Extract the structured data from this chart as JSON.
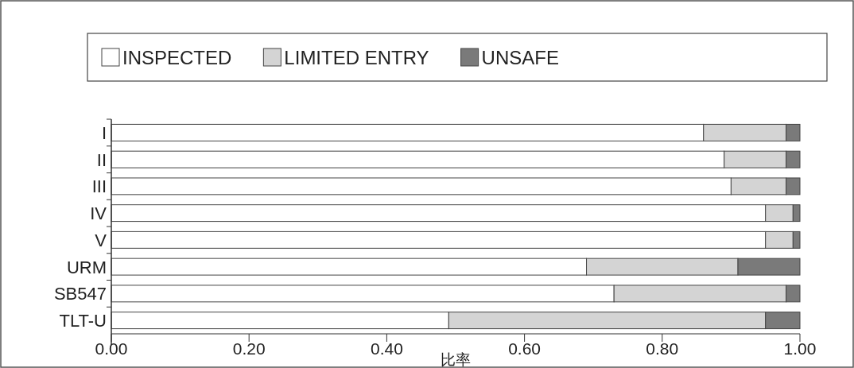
{
  "chart_data": {
    "type": "bar",
    "orientation": "horizontal",
    "stacked": true,
    "xlabel": "比率",
    "categories": [
      "I",
      "II",
      "III",
      "IV",
      "V",
      "URM",
      "SB547",
      "TLT-U"
    ],
    "series": [
      {
        "name": "INSPECTED",
        "color": "#ffffff",
        "values": [
          0.86,
          0.89,
          0.9,
          0.95,
          0.95,
          0.69,
          0.73,
          0.49
        ]
      },
      {
        "name": "LIMITED ENTRY",
        "color": "#d4d4d4",
        "values": [
          0.12,
          0.09,
          0.08,
          0.04,
          0.04,
          0.22,
          0.25,
          0.46
        ]
      },
      {
        "name": "UNSAFE",
        "color": "#7a7a7a",
        "values": [
          0.02,
          0.02,
          0.02,
          0.01,
          0.01,
          0.09,
          0.02,
          0.05
        ]
      }
    ],
    "xlim": [
      0,
      1
    ],
    "xticks": [
      {
        "value": 0,
        "label": "0.00"
      },
      {
        "value": 0.2,
        "label": "0.20"
      },
      {
        "value": 0.4,
        "label": "0.40"
      },
      {
        "value": 0.6,
        "label": "0.60"
      },
      {
        "value": 0.8,
        "label": "0.80"
      },
      {
        "value": 1,
        "label": "1.00"
      }
    ],
    "legend": "top"
  }
}
